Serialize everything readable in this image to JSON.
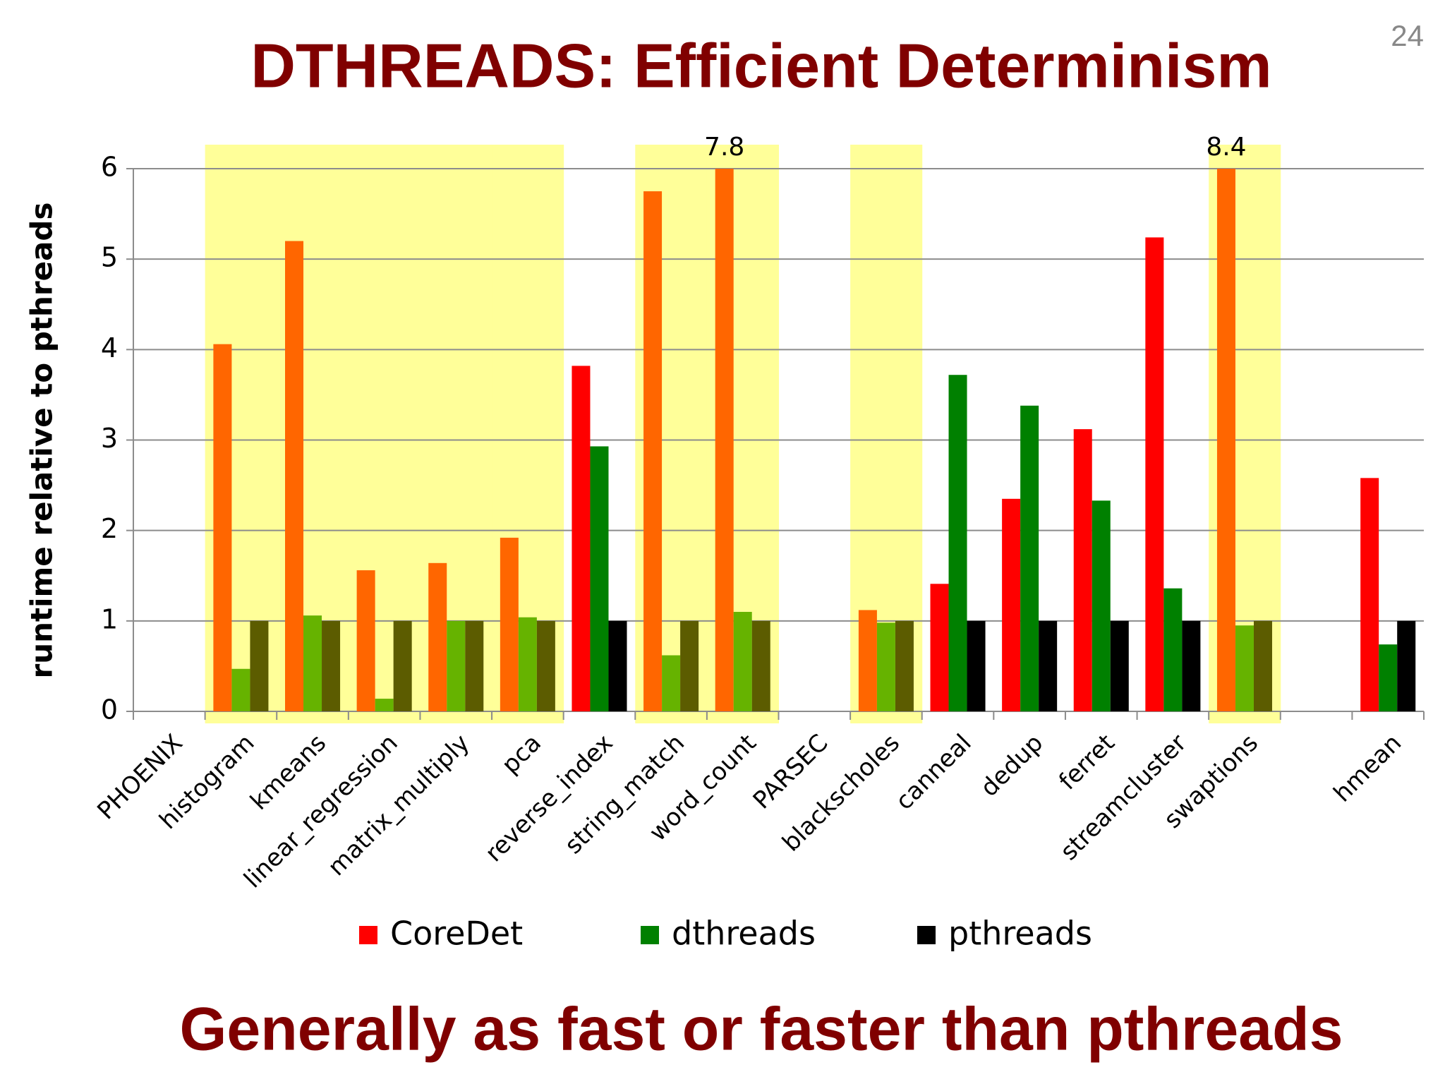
{
  "page_number": "24",
  "footer": "Generally as fast or faster than pthreads",
  "chart_data": {
    "type": "bar",
    "title": "DTHREADS: Efficient Determinism",
    "y_label": "runtime relative to pthreads",
    "categories": [
      "PHOENIX",
      "histogram",
      "kmeans",
      "linear_regression",
      "matrix_multiply",
      "pca",
      "reverse_index",
      "string_match",
      "word_count",
      "PARSEC",
      "blackscholes",
      "canneal",
      "dedup",
      "ferret",
      "streamcluster",
      "swaptions",
      null,
      "hmean"
    ],
    "series": [
      {
        "name": "CoreDet",
        "color": "#ff0000",
        "highlight_color": "#ff6600",
        "values": [
          null,
          4.06,
          5.2,
          1.56,
          1.64,
          1.92,
          3.82,
          5.75,
          7.8,
          null,
          1.12,
          1.41,
          2.35,
          3.12,
          5.24,
          8.4,
          null,
          2.58
        ],
        "value_labels": [
          null,
          null,
          null,
          null,
          null,
          null,
          null,
          null,
          "7.8",
          null,
          null,
          null,
          null,
          null,
          null,
          "8.4",
          null,
          null
        ]
      },
      {
        "name": "dthreads",
        "color": "#008000",
        "highlight_color": "#66b300",
        "values": [
          null,
          0.47,
          1.06,
          0.14,
          1.0,
          1.04,
          2.93,
          0.62,
          1.1,
          null,
          0.98,
          3.72,
          3.38,
          2.33,
          1.36,
          0.95,
          null,
          0.74
        ]
      },
      {
        "name": "pthreads",
        "color": "#000000",
        "highlight_color": "#5c5c00",
        "values": [
          null,
          1,
          1,
          1,
          1,
          1,
          1,
          1,
          1,
          null,
          1,
          1,
          1,
          1,
          1,
          1,
          null,
          1
        ]
      }
    ],
    "highlight": [
      1,
      2,
      3,
      4,
      5,
      7,
      8,
      10,
      15
    ],
    "highlight_fill": "#ffff99",
    "ylim": [
      0,
      6
    ],
    "yticks": [
      0,
      1,
      2,
      3,
      4,
      5,
      6
    ],
    "grid": true,
    "legend": "bottom"
  }
}
